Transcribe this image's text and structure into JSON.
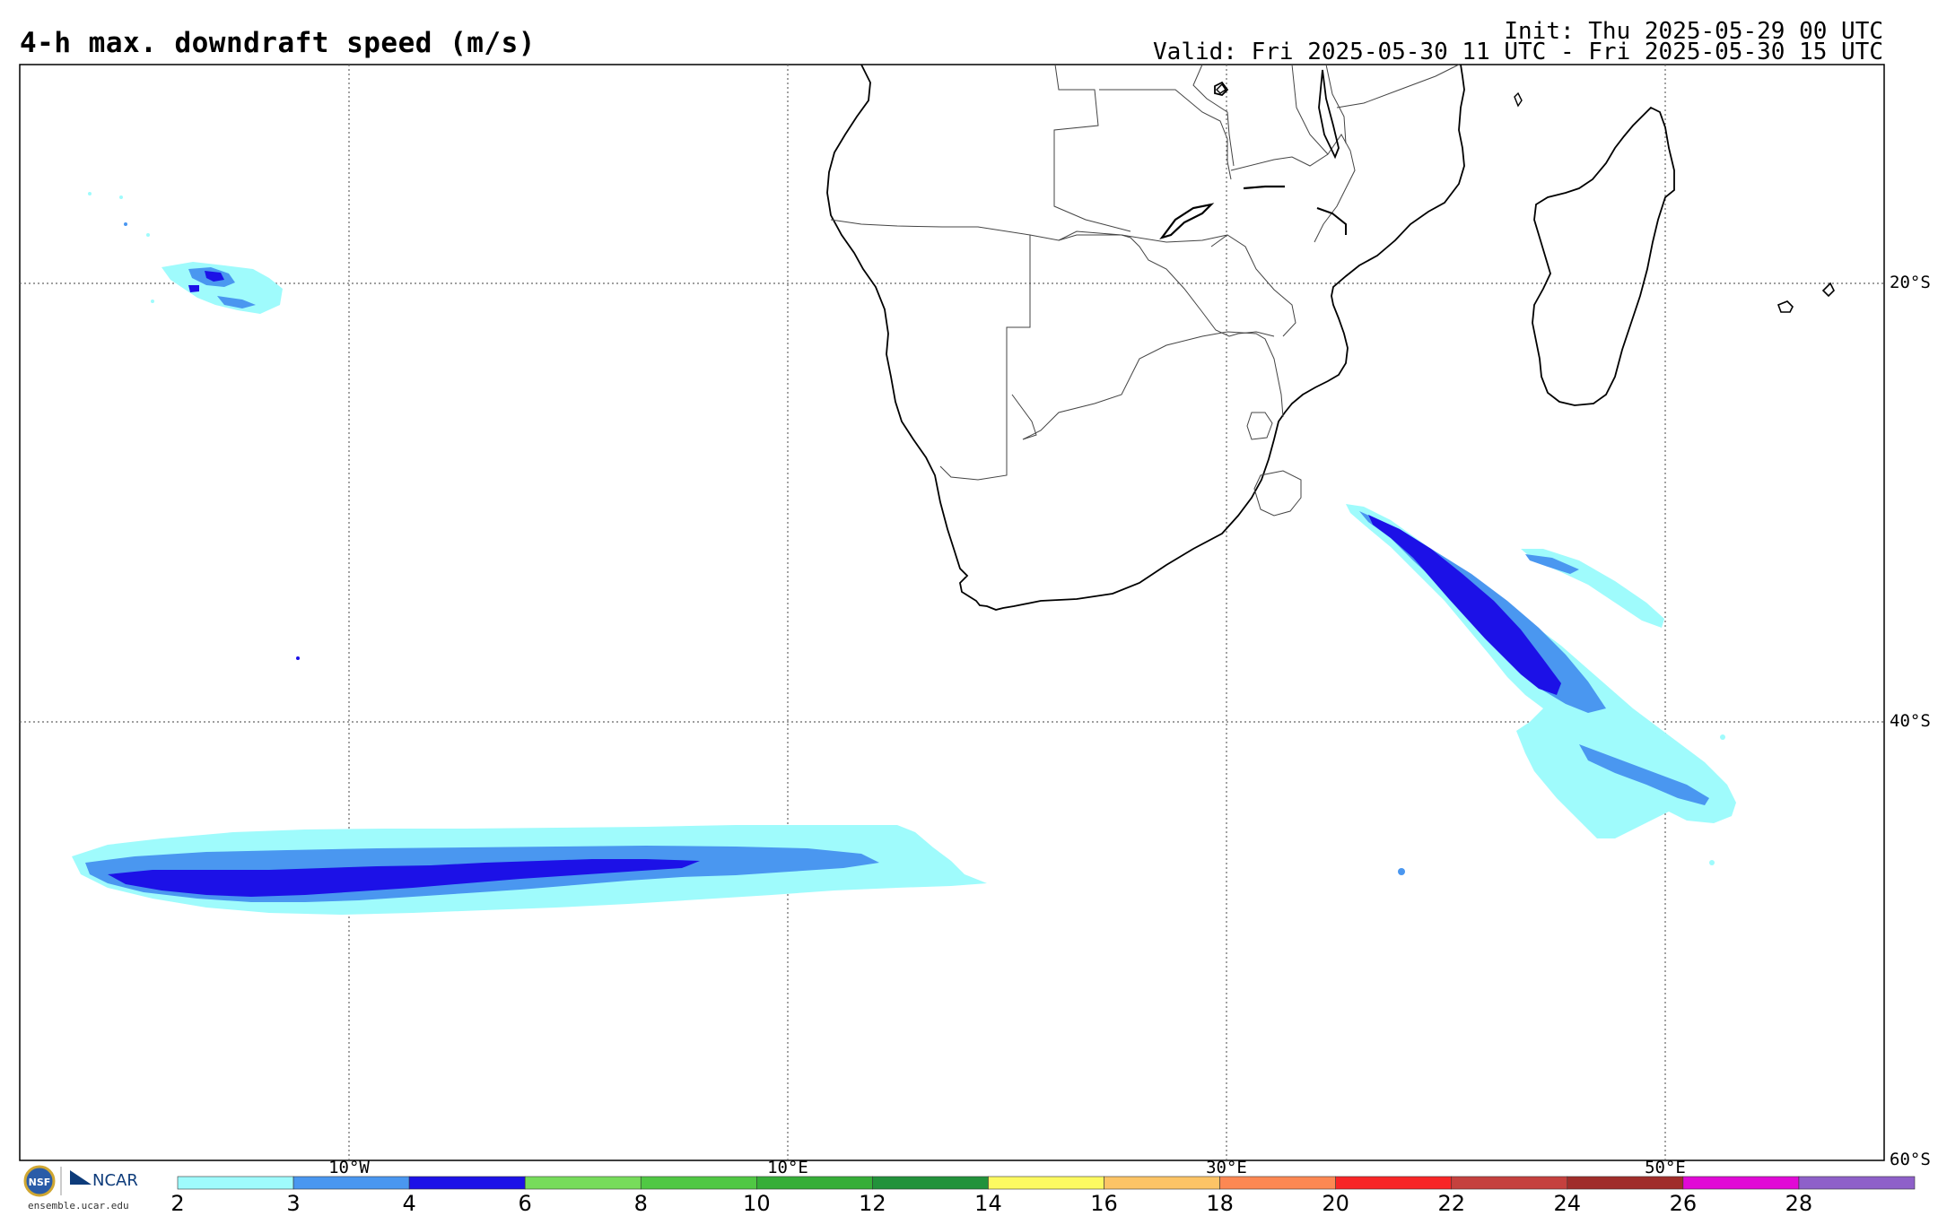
{
  "header": {
    "title": "4-h max. downdraft speed (m/s)",
    "init": "Init: Thu 2025-05-29 00 UTC",
    "valid": "Valid: Fri 2025-05-30 11 UTC - Fri 2025-05-30 15 UTC"
  },
  "map": {
    "region": "Southern Africa and South Atlantic / SW Indian Ocean",
    "lat_labels": [
      "20°S",
      "40°S",
      "60°S"
    ],
    "lon_labels": [
      "10°W",
      "10°E",
      "30°E",
      "50°E"
    ],
    "gridlines": "dotted"
  },
  "colorbar": {
    "labels": [
      "2",
      "3",
      "4",
      "6",
      "8",
      "10",
      "12",
      "14",
      "16",
      "18",
      "20",
      "22",
      "24",
      "26",
      "28"
    ],
    "colors": [
      "#9ffbfc",
      "#4a97f0",
      "#1c11e7",
      "#77dc5b",
      "#50c844",
      "#36ae38",
      "#22923b",
      "#fcfa61",
      "#fcc466",
      "#fc8853",
      "#f82526",
      "#c5413e",
      "#a02d2a",
      "#e109d6",
      "#8e60c9"
    ]
  },
  "logo": {
    "caption": "ensemble.ucar.edu",
    "org": "NCAR",
    "seal": "NSF"
  },
  "colors": {
    "light_cyan": "#9ffbfc",
    "mid_blue": "#4a97f0",
    "dark_blue": "#1c11e7"
  }
}
